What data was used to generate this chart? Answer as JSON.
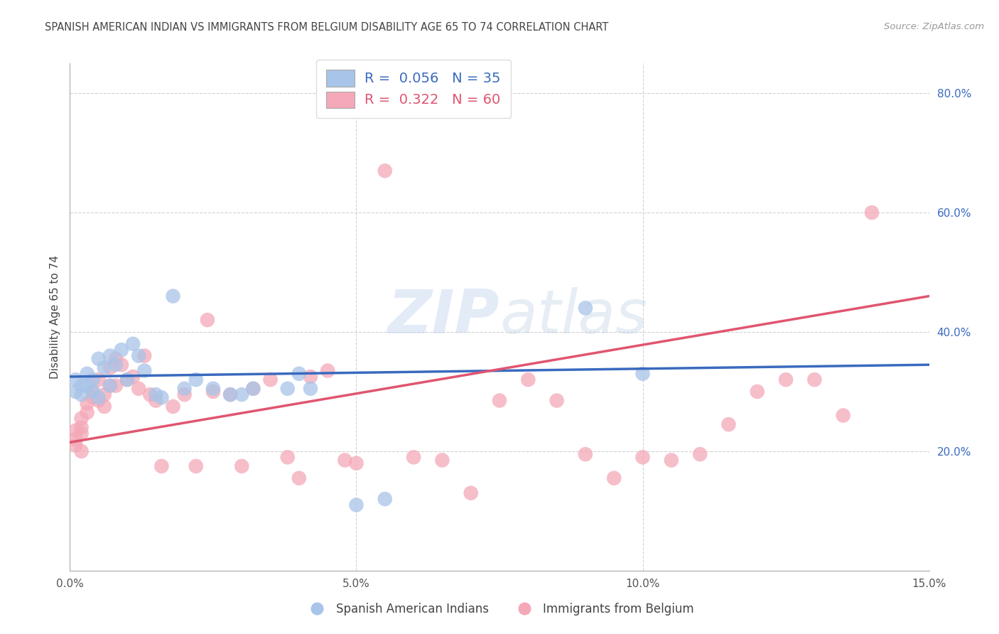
{
  "title": "SPANISH AMERICAN INDIAN VS IMMIGRANTS FROM BELGIUM DISABILITY AGE 65 TO 74 CORRELATION CHART",
  "source": "Source: ZipAtlas.com",
  "ylabel": "Disability Age 65 to 74",
  "xlim": [
    0.0,
    0.15
  ],
  "ylim": [
    0.0,
    0.85
  ],
  "xticks": [
    0.0,
    0.05,
    0.1,
    0.15
  ],
  "xtick_labels": [
    "0.0%",
    "5.0%",
    "10.0%",
    "15.0%"
  ],
  "yticks": [
    0.2,
    0.4,
    0.6,
    0.8
  ],
  "ytick_labels": [
    "20.0%",
    "40.0%",
    "60.0%",
    "80.0%"
  ],
  "legend1_color": "#a8c4e8",
  "legend2_color": "#f4a8b8",
  "line1_color": "#3a6abf",
  "line2_color": "#e05570",
  "background_color": "#ffffff",
  "grid_color": "#cccccc",
  "title_color": "#444444",
  "watermark_zip": "ZIP",
  "watermark_atlas": "atlas",
  "blue_R": 0.056,
  "blue_N": 35,
  "pink_R": 0.322,
  "pink_N": 60,
  "blue_x": [
    0.001,
    0.001,
    0.002,
    0.002,
    0.003,
    0.003,
    0.004,
    0.004,
    0.005,
    0.005,
    0.006,
    0.007,
    0.007,
    0.008,
    0.009,
    0.01,
    0.011,
    0.012,
    0.013,
    0.015,
    0.016,
    0.018,
    0.02,
    0.022,
    0.025,
    0.028,
    0.03,
    0.032,
    0.038,
    0.04,
    0.042,
    0.05,
    0.055,
    0.09,
    0.1
  ],
  "blue_y": [
    0.32,
    0.3,
    0.31,
    0.295,
    0.33,
    0.31,
    0.32,
    0.3,
    0.355,
    0.29,
    0.34,
    0.36,
    0.31,
    0.345,
    0.37,
    0.32,
    0.38,
    0.36,
    0.335,
    0.295,
    0.29,
    0.46,
    0.305,
    0.32,
    0.305,
    0.295,
    0.295,
    0.305,
    0.305,
    0.33,
    0.305,
    0.11,
    0.12,
    0.44,
    0.33
  ],
  "pink_x": [
    0.001,
    0.001,
    0.001,
    0.002,
    0.002,
    0.002,
    0.002,
    0.003,
    0.003,
    0.004,
    0.004,
    0.005,
    0.005,
    0.006,
    0.006,
    0.007,
    0.007,
    0.008,
    0.008,
    0.009,
    0.01,
    0.011,
    0.012,
    0.013,
    0.014,
    0.015,
    0.016,
    0.018,
    0.02,
    0.022,
    0.024,
    0.025,
    0.028,
    0.03,
    0.032,
    0.035,
    0.038,
    0.04,
    0.042,
    0.045,
    0.048,
    0.05,
    0.055,
    0.06,
    0.065,
    0.07,
    0.075,
    0.08,
    0.085,
    0.09,
    0.095,
    0.1,
    0.105,
    0.11,
    0.115,
    0.12,
    0.125,
    0.13,
    0.135,
    0.14
  ],
  "pink_y": [
    0.235,
    0.22,
    0.21,
    0.255,
    0.24,
    0.23,
    0.2,
    0.28,
    0.265,
    0.3,
    0.29,
    0.32,
    0.285,
    0.295,
    0.275,
    0.31,
    0.34,
    0.31,
    0.355,
    0.345,
    0.32,
    0.325,
    0.305,
    0.36,
    0.295,
    0.285,
    0.175,
    0.275,
    0.295,
    0.175,
    0.42,
    0.3,
    0.295,
    0.175,
    0.305,
    0.32,
    0.19,
    0.155,
    0.325,
    0.335,
    0.185,
    0.18,
    0.67,
    0.19,
    0.185,
    0.13,
    0.285,
    0.32,
    0.285,
    0.195,
    0.155,
    0.19,
    0.185,
    0.195,
    0.245,
    0.3,
    0.32,
    0.32,
    0.26,
    0.6
  ]
}
